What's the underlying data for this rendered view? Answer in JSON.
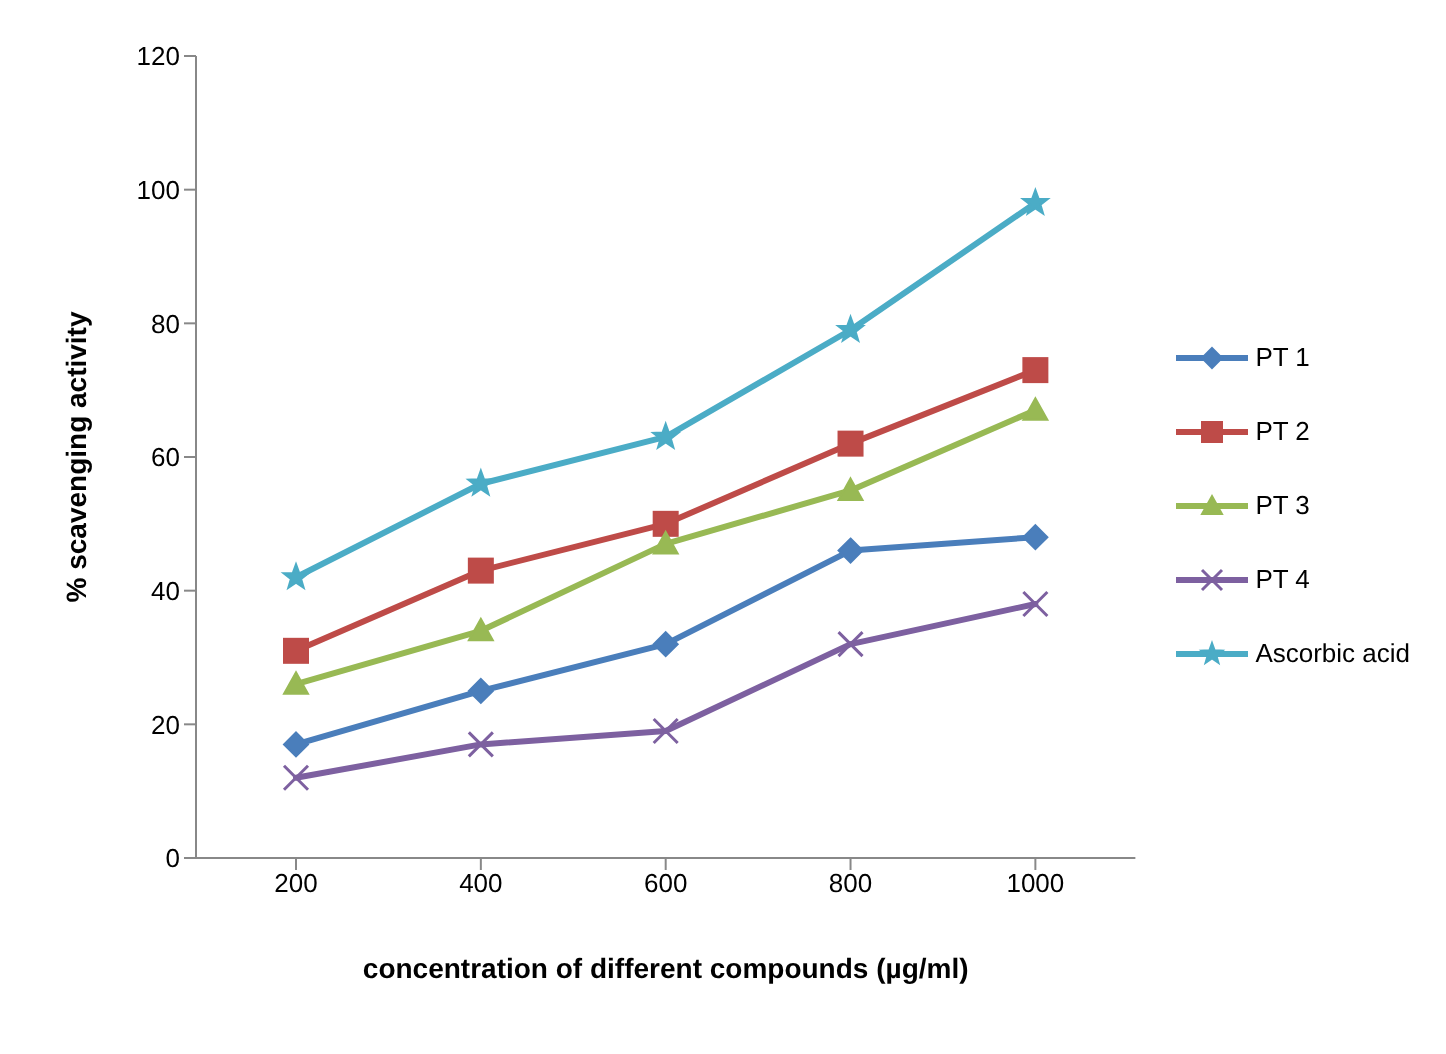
{
  "chart_data": {
    "type": "line",
    "xlabel": "concentration of different compounds (µg/ml)",
    "ylabel": "% scavenging activity",
    "categories": [
      "200",
      "400",
      "600",
      "800",
      "1000"
    ],
    "ylim": [
      0,
      120
    ],
    "yticks": [
      0,
      20,
      40,
      60,
      80,
      100,
      120
    ],
    "grid": false,
    "legend": "right",
    "line_style": "solid",
    "series": [
      {
        "name": "PT 1",
        "color": "#4a7ebb",
        "marker": "diamond",
        "values": [
          17,
          25,
          32,
          46,
          48
        ]
      },
      {
        "name": "PT 2",
        "color": "#be4b48",
        "marker": "square",
        "values": [
          31,
          43,
          50,
          62,
          73
        ]
      },
      {
        "name": "PT 3",
        "color": "#98b954",
        "marker": "triangle",
        "values": [
          26,
          34,
          47,
          55,
          67
        ]
      },
      {
        "name": "PT 4",
        "color": "#7d60a0",
        "marker": "cross",
        "values": [
          12,
          17,
          19,
          32,
          38
        ]
      },
      {
        "name": "Ascorbic acid",
        "color": "#4bacc6",
        "marker": "star",
        "values": [
          42,
          56,
          63,
          79,
          98
        ]
      }
    ]
  }
}
